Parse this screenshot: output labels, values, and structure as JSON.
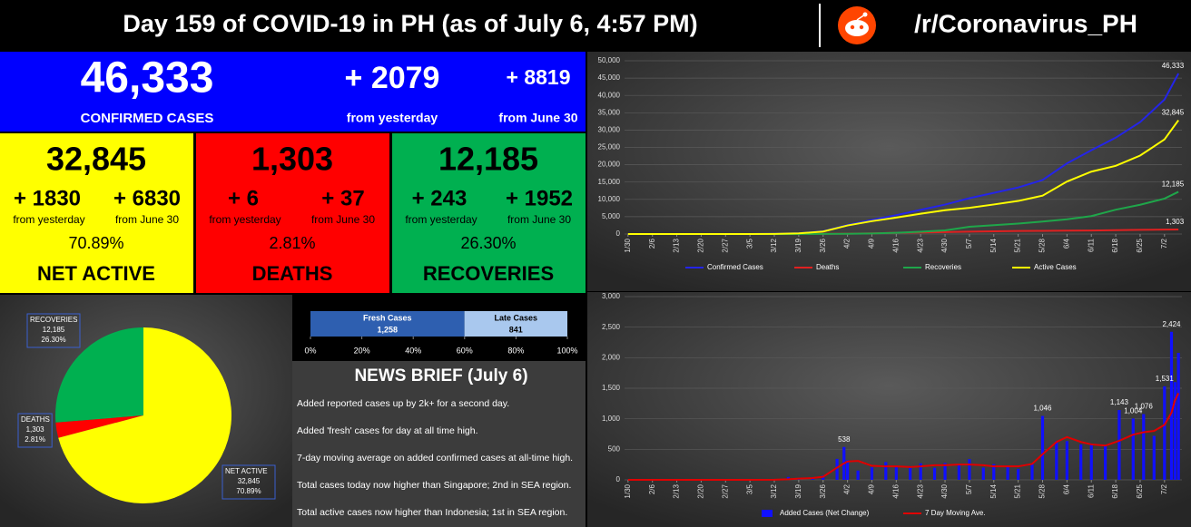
{
  "header": {
    "title": "Day 159 of COVID-19 in PH (as of July 6, 4:57 PM)",
    "subreddit": "/r/Coronavirus_PH"
  },
  "summary": {
    "total": {
      "value": "46,333",
      "label": "CONFIRMED CASES",
      "change_day": "+ 2079",
      "day_label": "from yesterday",
      "change_week": "+ 8819",
      "week_label": "from June 30"
    },
    "boxes": [
      {
        "value": "32,845",
        "change_day": "+ 1830",
        "change_week": "+ 6830",
        "day_label": "from yesterday",
        "week_label": "from June 30",
        "percent": "70.89%",
        "label": "NET ACTIVE",
        "color": "#ffff00"
      },
      {
        "value": "1,303",
        "change_day": "+ 6",
        "change_week": "+ 37",
        "day_label": "from yesterday",
        "week_label": "from June 30",
        "percent": "2.81%",
        "label": "DEATHS",
        "color": "#ff0000"
      },
      {
        "value": "12,185",
        "change_day": "+ 243",
        "change_week": "+ 1952",
        "day_label": "from yesterday",
        "week_label": "from June 30",
        "percent": "26.30%",
        "label": "RECOVERIES",
        "color": "#00b050"
      }
    ]
  },
  "news": {
    "title": "NEWS BRIEF (July 6)",
    "items": [
      "Added reported cases up by 2k+ for a second day.",
      "Added 'fresh' cases for day at all time high.",
      "7-day moving average on added confirmed cases at all-time high.",
      "Total cases today now higher than Singapore; 2nd in SEA region.",
      "Total active cases now higher than Indonesia; 1st in SEA region."
    ]
  },
  "chart_data": [
    {
      "type": "line",
      "x": [
        0,
        7,
        14,
        21,
        28,
        35,
        42,
        49,
        56,
        63,
        70,
        77,
        84,
        91,
        98,
        105,
        112,
        119,
        126,
        133,
        140,
        147,
        154,
        158
      ],
      "xlim": [
        -1,
        159
      ],
      "xticks": [
        {
          "value": 0,
          "label": "1/30"
        },
        {
          "value": 7,
          "label": "2/6"
        },
        {
          "value": 14,
          "label": "2/13"
        },
        {
          "value": 21,
          "label": "2/20"
        },
        {
          "value": 28,
          "label": "2/27"
        },
        {
          "value": 35,
          "label": "3/5"
        },
        {
          "value": 42,
          "label": "3/12"
        },
        {
          "value": 49,
          "label": "3/19"
        },
        {
          "value": 56,
          "label": "3/26"
        },
        {
          "value": 63,
          "label": "4/2"
        },
        {
          "value": 70,
          "label": "4/9"
        },
        {
          "value": 77,
          "label": "4/16"
        },
        {
          "value": 84,
          "label": "4/23"
        },
        {
          "value": 91,
          "label": "4/30"
        },
        {
          "value": 98,
          "label": "5/7"
        },
        {
          "value": 105,
          "label": "5/14"
        },
        {
          "value": 112,
          "label": "5/21"
        },
        {
          "value": 119,
          "label": "5/28"
        },
        {
          "value": 126,
          "label": "6/4"
        },
        {
          "value": 133,
          "label": "6/11"
        },
        {
          "value": 140,
          "label": "6/18"
        },
        {
          "value": 147,
          "label": "6/25"
        },
        {
          "value": 154,
          "label": "7/2"
        }
      ],
      "ylim": [
        0,
        50000
      ],
      "yticks": [
        0,
        {
          "value": 5000,
          "label": "5,000"
        },
        {
          "value": 10000,
          "label": "10,000"
        },
        {
          "value": 15000,
          "label": "15,000"
        },
        {
          "value": 20000,
          "label": "20,000"
        },
        {
          "value": 25000,
          "label": "25,000"
        },
        {
          "value": 30000,
          "label": "30,000"
        },
        {
          "value": 35000,
          "label": "35,000"
        },
        {
          "value": 40000,
          "label": "40,000"
        },
        {
          "value": 45000,
          "label": "45,000"
        },
        {
          "value": 50000,
          "label": "50,000"
        }
      ],
      "grid": true,
      "series": [
        {
          "name": "Confirmed Cases",
          "color": "#2424e8",
          "values": [
            1,
            3,
            3,
            3,
            3,
            3,
            52,
            217,
            803,
            2633,
            4076,
            5453,
            6981,
            8488,
            10343,
            11876,
            13434,
            15588,
            20382,
            24175,
            27799,
            32295,
            38805,
            46333
          ],
          "value_labels": [
            null,
            null,
            null,
            null,
            null,
            null,
            null,
            null,
            null,
            null,
            null,
            null,
            null,
            null,
            null,
            null,
            null,
            null,
            null,
            null,
            null,
            null,
            null,
            "46,333"
          ]
        },
        {
          "name": "Deaths",
          "color": "#e02020",
          "values": [
            0,
            0,
            0,
            0,
            0,
            0,
            2,
            17,
            54,
            107,
            203,
            349,
            462,
            568,
            685,
            790,
            873,
            921,
            987,
            1011,
            1108,
            1212,
            1266,
            1303
          ],
          "value_labels": [
            null,
            null,
            null,
            null,
            null,
            null,
            null,
            null,
            null,
            null,
            null,
            null,
            null,
            null,
            null,
            null,
            null,
            null,
            null,
            null,
            null,
            null,
            null,
            "1,303"
          ]
        },
        {
          "name": "Recoveries",
          "color": "#1fa64a",
          "values": [
            0,
            1,
            2,
            2,
            2,
            2,
            2,
            8,
            31,
            51,
            157,
            353,
            654,
            1043,
            2106,
            2561,
            3018,
            3598,
            4248,
            5165,
            7015,
            8442,
            10233,
            12185
          ],
          "value_labels": [
            null,
            null,
            null,
            null,
            null,
            null,
            null,
            null,
            null,
            null,
            null,
            null,
            null,
            null,
            null,
            null,
            null,
            null,
            null,
            null,
            null,
            null,
            null,
            "12,185"
          ]
        },
        {
          "name": "Active Cases",
          "color": "#ffff00",
          "values": [
            1,
            2,
            1,
            1,
            1,
            1,
            48,
            192,
            718,
            2475,
            3716,
            4751,
            5865,
            6877,
            7552,
            8525,
            9543,
            11069,
            15147,
            17999,
            19676,
            22641,
            27306,
            32845
          ],
          "value_labels": [
            null,
            null,
            null,
            null,
            null,
            null,
            null,
            null,
            null,
            null,
            null,
            null,
            null,
            null,
            null,
            null,
            null,
            null,
            null,
            null,
            null,
            null,
            null,
            "32,845"
          ]
        }
      ]
    },
    {
      "type": "bar",
      "x": [
        0,
        7,
        14,
        21,
        28,
        35,
        42,
        46,
        49,
        53,
        56,
        60,
        62,
        63,
        66,
        70,
        74,
        77,
        81,
        84,
        88,
        91,
        95,
        98,
        102,
        105,
        109,
        112,
        116,
        119,
        123,
        126,
        130,
        133,
        137,
        141,
        145,
        148,
        151,
        154,
        156,
        157,
        158
      ],
      "xlim": [
        -1,
        159
      ],
      "xticks": [
        {
          "value": 0,
          "label": "1/30"
        },
        {
          "value": 7,
          "label": "2/6"
        },
        {
          "value": 14,
          "label": "2/13"
        },
        {
          "value": 21,
          "label": "2/20"
        },
        {
          "value": 28,
          "label": "2/27"
        },
        {
          "value": 35,
          "label": "3/5"
        },
        {
          "value": 42,
          "label": "3/12"
        },
        {
          "value": 49,
          "label": "3/19"
        },
        {
          "value": 56,
          "label": "3/26"
        },
        {
          "value": 63,
          "label": "4/2"
        },
        {
          "value": 70,
          "label": "4/9"
        },
        {
          "value": 77,
          "label": "4/16"
        },
        {
          "value": 84,
          "label": "4/23"
        },
        {
          "value": 91,
          "label": "4/30"
        },
        {
          "value": 98,
          "label": "5/7"
        },
        {
          "value": 105,
          "label": "5/14"
        },
        {
          "value": 112,
          "label": "5/21"
        },
        {
          "value": 119,
          "label": "5/28"
        },
        {
          "value": 126,
          "label": "6/4"
        },
        {
          "value": 133,
          "label": "6/11"
        },
        {
          "value": 140,
          "label": "6/18"
        },
        {
          "value": 147,
          "label": "6/25"
        },
        {
          "value": 154,
          "label": "7/2"
        }
      ],
      "ylim": [
        0,
        3000
      ],
      "yticks": [
        0,
        500,
        {
          "value": 1000,
          "label": "1,000"
        },
        {
          "value": 1500,
          "label": "1,500"
        },
        {
          "value": 2000,
          "label": "2,000"
        },
        {
          "value": 2500,
          "label": "2,500"
        },
        {
          "value": 3000,
          "label": "3,000"
        }
      ],
      "grid": true,
      "series": [
        {
          "name": "Added Cases (Net Change)",
          "color": "#1010ff",
          "values": [
            1,
            0,
            0,
            0,
            0,
            0,
            3,
            47,
            15,
            35,
            71,
            343,
            538,
            322,
            152,
            206,
            291,
            207,
            211,
            271,
            198,
            276,
            262,
            339,
            201,
            258,
            208,
            180,
            258,
            1046,
            634,
            634,
            578,
            579,
            555,
            1143,
            1004,
            1076,
            720,
            1531,
            2424,
            1600,
            2079
          ],
          "value_labels": [
            null,
            null,
            null,
            null,
            null,
            null,
            null,
            null,
            null,
            null,
            null,
            null,
            "538",
            null,
            null,
            null,
            null,
            null,
            null,
            null,
            null,
            null,
            null,
            null,
            null,
            null,
            null,
            null,
            null,
            "1,046",
            null,
            null,
            null,
            null,
            null,
            "1,143",
            "1,004",
            "1,076",
            null,
            "1,531",
            "2,424",
            null,
            null
          ]
        },
        {
          "name": "7 Day Moving Ave.",
          "color": "#e00000",
          "type": "line",
          "values": [
            0,
            0,
            0,
            0,
            0,
            0,
            2,
            10,
            20,
            30,
            50,
            200,
            270,
            300,
            310,
            230,
            220,
            220,
            210,
            220,
            240,
            240,
            250,
            250,
            240,
            220,
            220,
            220,
            260,
            420,
            620,
            700,
            620,
            580,
            560,
            640,
            740,
            780,
            800,
            900,
            1100,
            1300,
            1420
          ]
        }
      ]
    },
    {
      "type": "pie",
      "slices": [
        {
          "name": "RECOVERIES",
          "count_label": "12,185",
          "value": 26.3,
          "value_label": "26.30%",
          "color": "#00b050"
        },
        {
          "name": "DEATHS",
          "count_label": "1,303",
          "value": 2.81,
          "value_label": "2.81%",
          "color": "#ff0000"
        },
        {
          "name": "NET ACTIVE",
          "count_label": "32,845",
          "value": 70.89,
          "value_label": "70.89%",
          "color": "#ffff00"
        }
      ]
    },
    {
      "type": "stacked_bar",
      "series": [
        {
          "name": "Fresh Cases",
          "values": [
            1258
          ],
          "value_labels": [
            "1,258"
          ],
          "color": "#2e5fb0"
        },
        {
          "name": "Late Cases",
          "values": [
            841
          ],
          "value_labels": [
            "841"
          ],
          "color": "#a9c8ee"
        }
      ],
      "xlim": [
        0,
        100
      ],
      "xticks": [
        {
          "value": 0,
          "label": "0%"
        },
        {
          "value": 20,
          "label": "20%"
        },
        {
          "value": 40,
          "label": "40%"
        },
        {
          "value": 60,
          "label": "60%"
        },
        {
          "value": 80,
          "label": "80%"
        },
        {
          "value": 100,
          "label": "100%"
        }
      ]
    }
  ]
}
